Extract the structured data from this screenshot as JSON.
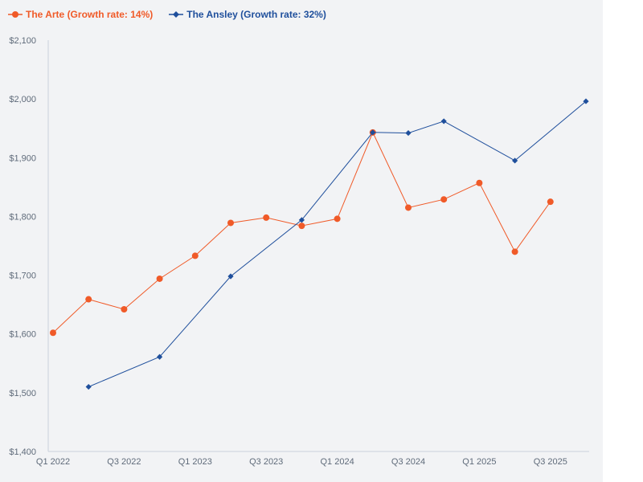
{
  "chart_data": {
    "type": "line",
    "title": "",
    "xlabel": "",
    "ylabel": "",
    "x_ticks": [
      "Q1 2022",
      "Q3 2022",
      "Q1 2023",
      "Q3 2023",
      "Q1 2024",
      "Q3 2024",
      "Q1 2025",
      "Q3 2025"
    ],
    "y_ticks": [
      "$1,400",
      "$1,500",
      "$1,600",
      "$1,700",
      "$1,800",
      "$1,900",
      "$2,000",
      "$2,100"
    ],
    "ylim": [
      1400,
      2100
    ],
    "x_range": [
      0,
      15.6
    ],
    "grid": false,
    "legend_position": "top-left",
    "series": [
      {
        "name": "The Arte (Growth rate: 14%)",
        "color": "#f05a28",
        "marker": "circle",
        "points": [
          {
            "x": 0,
            "y": 1602
          },
          {
            "x": 1,
            "y": 1659
          },
          {
            "x": 2,
            "y": 1642
          },
          {
            "x": 3,
            "y": 1694
          },
          {
            "x": 4,
            "y": 1733
          },
          {
            "x": 5,
            "y": 1789
          },
          {
            "x": 6,
            "y": 1798
          },
          {
            "x": 7,
            "y": 1784
          },
          {
            "x": 8,
            "y": 1796
          },
          {
            "x": 9,
            "y": 1943
          },
          {
            "x": 10,
            "y": 1815
          },
          {
            "x": 11,
            "y": 1829
          },
          {
            "x": 12,
            "y": 1857
          },
          {
            "x": 13,
            "y": 1740
          },
          {
            "x": 14,
            "y": 1825
          }
        ]
      },
      {
        "name": "The Ansley (Growth rate: 32%)",
        "color": "#1f4f9c",
        "marker": "diamond",
        "points": [
          {
            "x": 1,
            "y": 1510
          },
          {
            "x": 3,
            "y": 1561
          },
          {
            "x": 5,
            "y": 1698
          },
          {
            "x": 7,
            "y": 1794
          },
          {
            "x": 9,
            "y": 1943
          },
          {
            "x": 10,
            "y": 1942
          },
          {
            "x": 11,
            "y": 1962
          },
          {
            "x": 13,
            "y": 1895
          },
          {
            "x": 15,
            "y": 1996
          }
        ]
      }
    ]
  }
}
